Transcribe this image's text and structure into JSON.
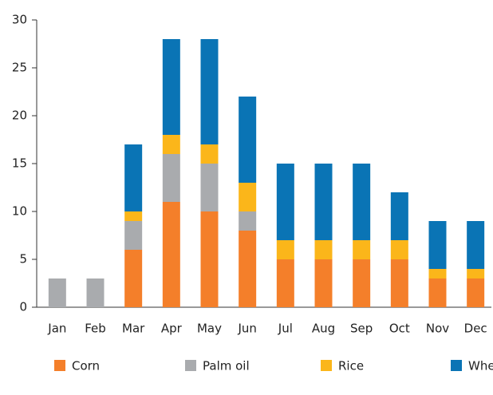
{
  "chart_data": {
    "type": "stacked_bar",
    "categories": [
      "Jan",
      "Feb",
      "Mar",
      "Apr",
      "May",
      "Jun",
      "Jul",
      "Aug",
      "Sep",
      "Oct",
      "Nov",
      "Dec"
    ],
    "series": [
      {
        "name": "Corn",
        "color": "#f47f2a",
        "values": [
          0,
          0,
          6,
          11,
          10,
          8,
          5,
          5,
          5,
          5,
          3,
          3
        ]
      },
      {
        "name": "Palm oil",
        "color": "#a9abae",
        "values": [
          3,
          3,
          3,
          5,
          5,
          2,
          0,
          0,
          0,
          0,
          0,
          0
        ]
      },
      {
        "name": "Rice",
        "color": "#fbb61a",
        "values": [
          0,
          0,
          1,
          2,
          2,
          3,
          2,
          2,
          2,
          2,
          1,
          1
        ]
      },
      {
        "name": "Wheat",
        "color": "#0a74b5",
        "values": [
          0,
          0,
          7,
          10,
          11,
          9,
          8,
          8,
          8,
          5,
          5,
          5
        ]
      }
    ],
    "ylim": [
      0,
      30
    ],
    "yticks": [
      0,
      5,
      10,
      15,
      20,
      25,
      30
    ],
    "grid": false,
    "legend": "bottom"
  }
}
